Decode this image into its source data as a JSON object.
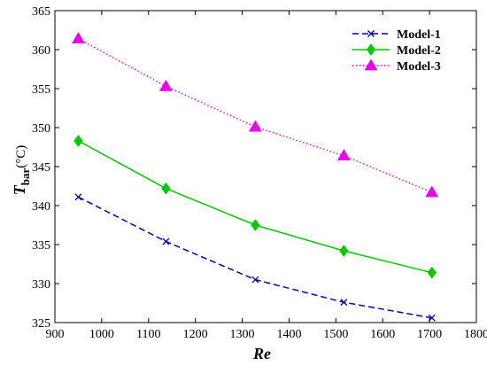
{
  "chart_data": {
    "type": "line",
    "xlabel": "Re",
    "ylabel_main": "T",
    "ylabel_sub": "bar",
    "ylabel_unit": "(°C)",
    "xlim": [
      900,
      1800
    ],
    "ylim": [
      325,
      365
    ],
    "xticks": [
      900,
      1000,
      1100,
      1200,
      1300,
      1400,
      1500,
      1600,
      1700,
      1800
    ],
    "yticks": [
      325,
      330,
      335,
      340,
      345,
      350,
      355,
      360,
      365
    ],
    "grid": false,
    "legend_position": "top-right",
    "x": [
      950,
      1137,
      1328,
      1517,
      1705
    ],
    "series": [
      {
        "name": "Model-1",
        "color": "#0000bb",
        "line": "dashed",
        "marker": "x",
        "values": [
          341.1,
          335.4,
          330.5,
          327.6,
          325.6
        ]
      },
      {
        "name": "Model-2",
        "color": "#00cc00",
        "line": "solid",
        "marker": "diamond",
        "values": [
          348.3,
          342.2,
          337.5,
          334.2,
          331.4
        ]
      },
      {
        "name": "Model-3",
        "color": "#ee00ee",
        "line": "dotted",
        "marker": "triangle",
        "values": [
          361.4,
          355.3,
          350.1,
          346.4,
          341.7
        ]
      }
    ]
  }
}
